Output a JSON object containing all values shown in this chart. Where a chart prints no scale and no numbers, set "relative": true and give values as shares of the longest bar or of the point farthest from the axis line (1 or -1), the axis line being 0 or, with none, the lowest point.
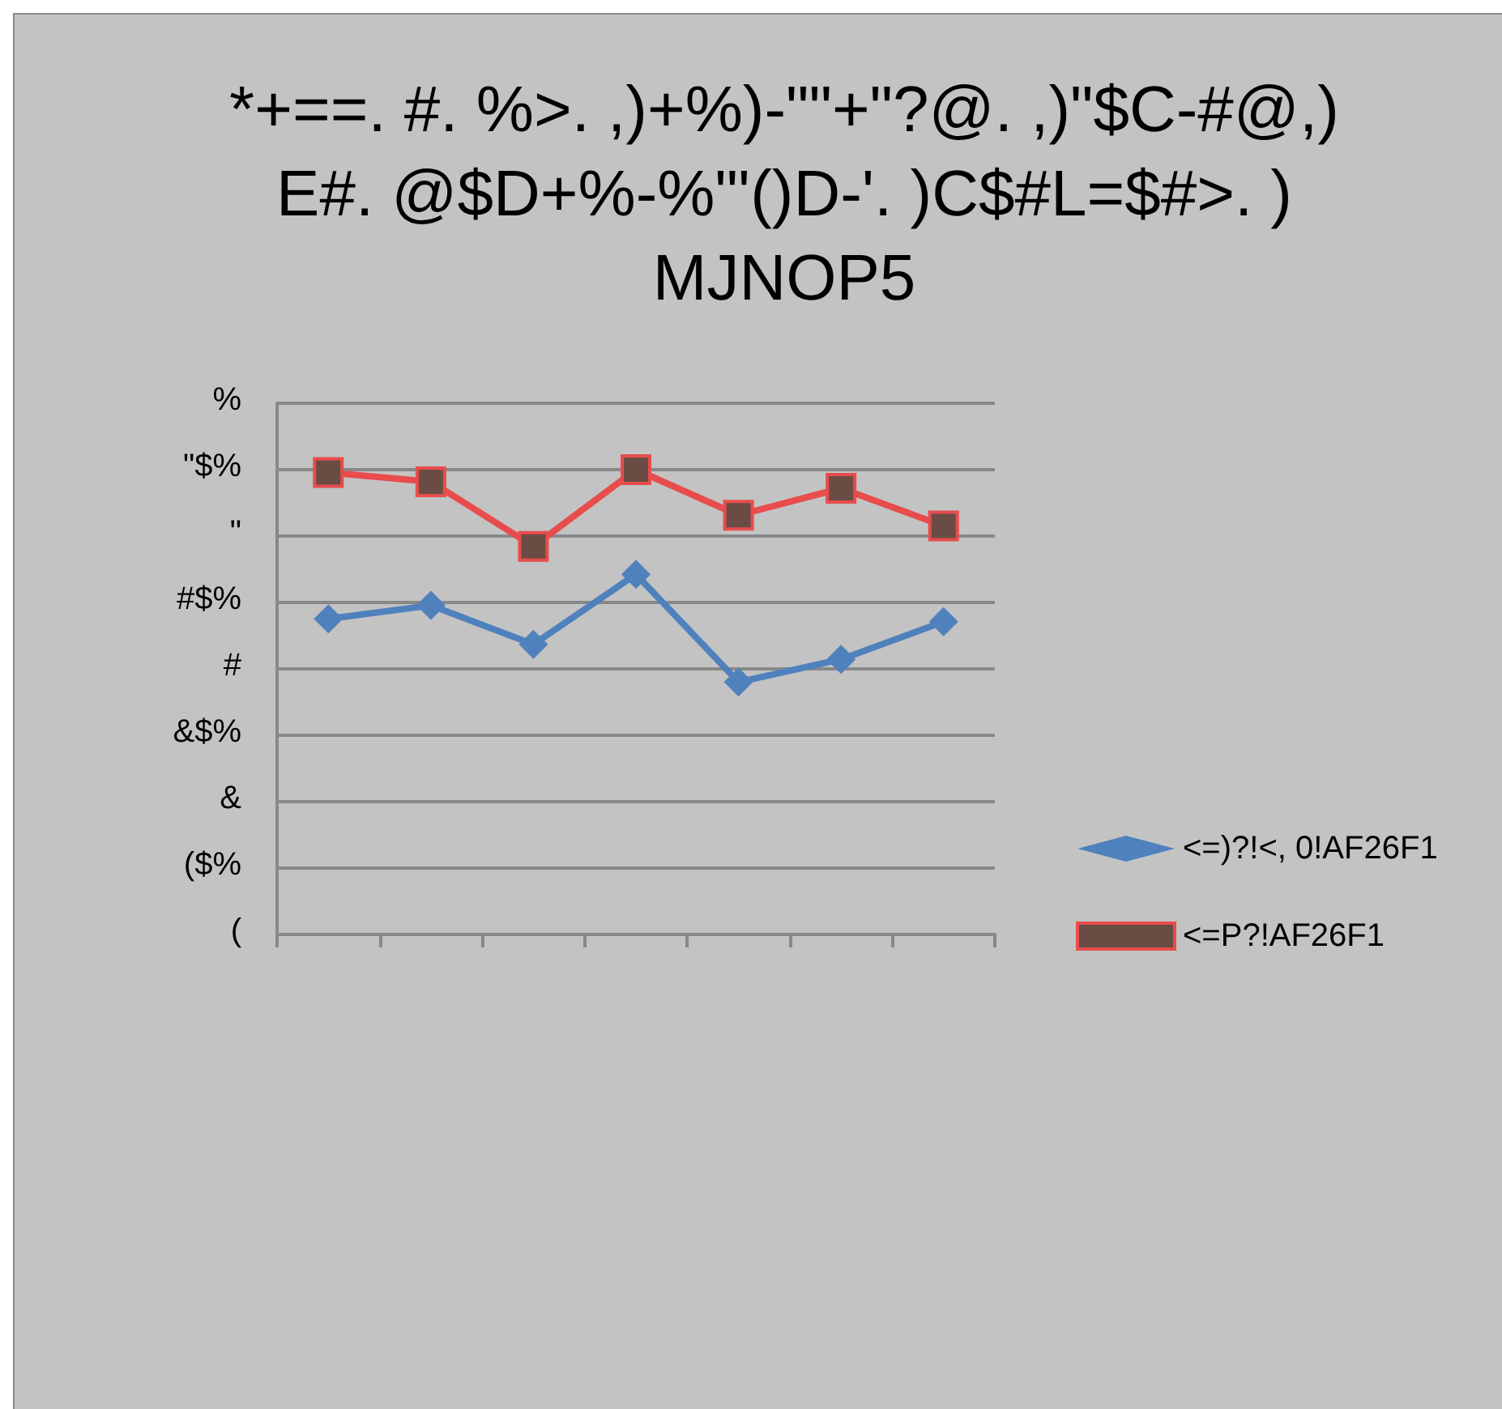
{
  "chart_data": {
    "type": "line",
    "title": "*+==. #. %>. ,)+%)-\"\"+\"?@. ,)\"$C-#@,)\nE#. @$D+%-%\"'()D-'. )C$#L=$#>. )\nMJNOP5",
    "categories": [
      null,
      null,
      null,
      null,
      null,
      null,
      null
    ],
    "series": [
      {
        "name": "<=)?!<, 0!AF26F1",
        "color": "#4f81bd",
        "marker": "diamond",
        "values": [
          0.679,
          0.708,
          0.624,
          0.775,
          0.543,
          0.592,
          0.673
        ]
      },
      {
        "name": "<=P?!AF26F1",
        "color": "#e84c4c",
        "marker": "square",
        "values": [
          0.994,
          0.974,
          0.835,
          1,
          0.902,
          0.96,
          0.879
        ]
      }
    ],
    "relative": true,
    "annotations": [
      "(",
      "($%",
      "&",
      "&$%",
      "#",
      "#$%",
      "\"",
      "\"$%",
      "%"
    ],
    "grid": "y",
    "legend": "right"
  }
}
